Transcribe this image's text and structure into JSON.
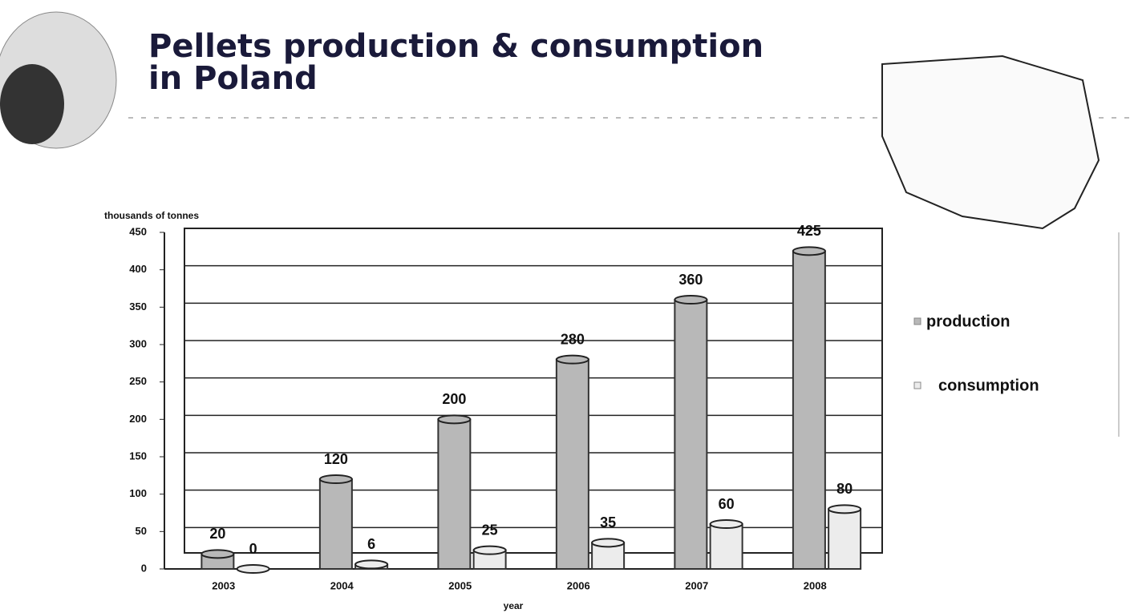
{
  "chart_data": {
    "type": "bar",
    "title": "Pellets production & consumption",
    "subtitle": "in Poland",
    "y_label": "thousands of tonnes",
    "x_label": "year",
    "categories": [
      "2003",
      "2004",
      "2005",
      "2006",
      "2007",
      "2008"
    ],
    "series": [
      {
        "name": "production",
        "color": "#b8b8b8",
        "values": [
          20,
          120,
          200,
          280,
          360,
          425
        ]
      },
      {
        "name": "consumption",
        "color": "#ececec",
        "values": [
          0,
          6,
          25,
          35,
          60,
          80
        ]
      }
    ],
    "ylim": [
      0,
      450
    ],
    "yticks": [
      0,
      50,
      100,
      150,
      200,
      250,
      300,
      350,
      400,
      450
    ],
    "grid": true,
    "legend": "right"
  }
}
